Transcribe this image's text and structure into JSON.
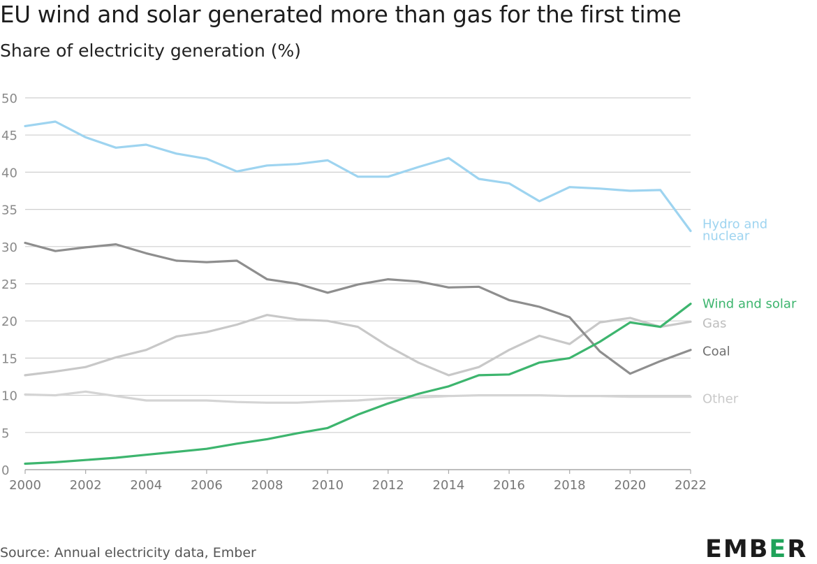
{
  "chart_data": {
    "type": "line",
    "title": "EU wind and solar generated more than gas for the first time",
    "subtitle": "Share of electricity generation (%)",
    "x": [
      2000,
      2001,
      2002,
      2003,
      2004,
      2005,
      2006,
      2007,
      2008,
      2009,
      2010,
      2011,
      2012,
      2013,
      2014,
      2015,
      2016,
      2017,
      2018,
      2019,
      2020,
      2021,
      2022
    ],
    "x_ticks": [
      2000,
      2002,
      2004,
      2006,
      2008,
      2010,
      2012,
      2014,
      2016,
      2018,
      2020,
      2022
    ],
    "y_ticks": [
      0,
      5,
      10,
      15,
      20,
      25,
      30,
      35,
      40,
      45,
      50
    ],
    "ylim": [
      0,
      50
    ],
    "xlim": [
      2000,
      2022
    ],
    "grid": "horizontal",
    "legend": "direct labels at right",
    "series": [
      {
        "name": "Other",
        "color": "#d4d4d4",
        "values": [
          10.1,
          10.0,
          10.5,
          9.9,
          9.3,
          9.3,
          9.3,
          9.1,
          9.0,
          9.0,
          9.2,
          9.3,
          9.6,
          9.7,
          9.9,
          10.0,
          10.0,
          10.0,
          9.9,
          9.9,
          9.8,
          9.8,
          9.8
        ]
      },
      {
        "name": "Gas",
        "color": "#c8c8c8",
        "values": [
          12.7,
          13.2,
          13.8,
          15.1,
          16.1,
          17.9,
          18.5,
          19.5,
          20.8,
          20.2,
          20.0,
          19.2,
          16.6,
          14.4,
          12.7,
          13.8,
          16.1,
          18.0,
          16.9,
          19.8,
          20.4,
          19.2,
          19.9
        ]
      },
      {
        "name": "Coal",
        "color": "#8e8e8e",
        "values": [
          30.5,
          29.4,
          29.9,
          30.3,
          29.1,
          28.1,
          27.9,
          28.1,
          25.6,
          25.0,
          23.8,
          24.9,
          25.6,
          25.3,
          24.5,
          24.6,
          22.8,
          21.9,
          20.5,
          15.9,
          12.9,
          14.6,
          16.1
        ]
      },
      {
        "name": "Hydro and nuclear",
        "color": "#9ed4f0",
        "values": [
          46.2,
          46.8,
          44.7,
          43.3,
          43.7,
          42.5,
          41.8,
          40.1,
          40.9,
          41.1,
          41.6,
          39.4,
          39.4,
          40.7,
          41.9,
          39.1,
          38.5,
          36.1,
          38.0,
          37.8,
          37.5,
          37.6,
          32.1
        ]
      },
      {
        "name": "Wind and solar",
        "color": "#3db56e",
        "values": [
          0.8,
          1.0,
          1.3,
          1.6,
          2.0,
          2.4,
          2.8,
          3.5,
          4.1,
          4.9,
          5.6,
          7.4,
          8.9,
          10.2,
          11.2,
          12.7,
          12.8,
          14.4,
          15.0,
          17.2,
          19.8,
          19.2,
          22.3
        ]
      }
    ]
  },
  "footer": {
    "source": "Source: Annual electricity data, Ember",
    "logo_main": "EMB",
    "logo_accent": "E",
    "logo_end": "R"
  }
}
